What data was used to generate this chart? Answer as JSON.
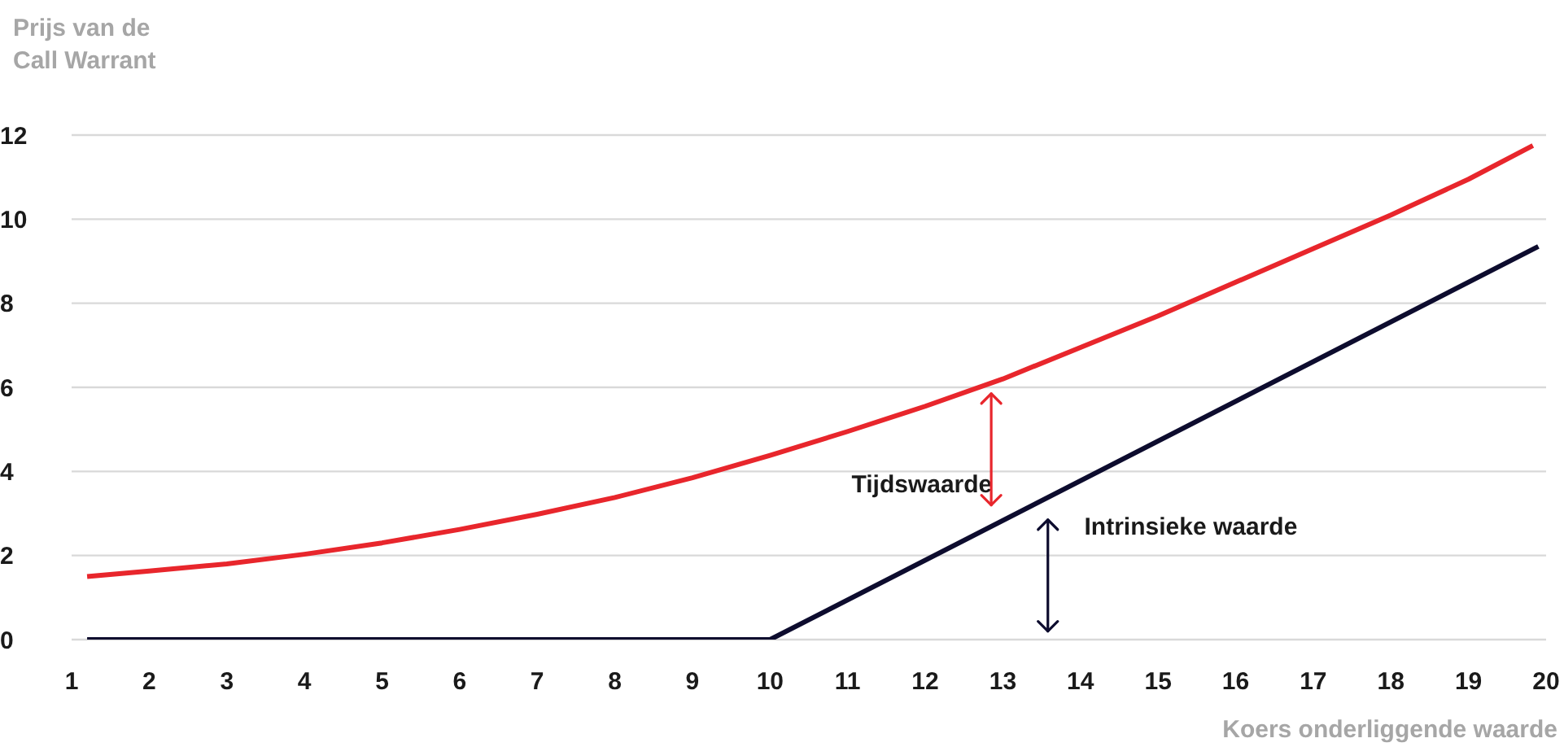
{
  "chart_data": {
    "type": "line",
    "ylabel": "Prijs van de\nCall Warrant",
    "xlabel": "Koers onderliggende waarde",
    "annotations": [
      "Tijdswaarde",
      "Intrinsieke waarde"
    ],
    "series": [
      {
        "color": "#e8262c",
        "x": [
          1.2,
          2,
          3,
          4,
          5,
          6,
          7,
          8,
          9,
          10,
          11,
          12,
          13,
          14,
          15,
          16,
          17,
          18,
          19,
          19.83
        ],
        "values": [
          1.5,
          1.63,
          1.8,
          2.03,
          2.3,
          2.62,
          2.98,
          3.38,
          3.85,
          4.38,
          4.95,
          5.55,
          6.2,
          6.95,
          7.7,
          8.5,
          9.3,
          10.1,
          10.95,
          11.75
        ]
      },
      {
        "color": "#0d0c2e",
        "x": [
          1.2,
          10,
          19.9
        ],
        "values": [
          0,
          0,
          9.35
        ]
      }
    ],
    "xlim": [
      1,
      20
    ],
    "xticks": [
      1,
      2,
      3,
      4,
      5,
      6,
      7,
      8,
      9,
      10,
      11,
      12,
      13,
      14,
      15,
      16,
      17,
      18,
      19,
      20
    ],
    "ylim": [
      0,
      12
    ],
    "yticks": [
      0,
      2,
      4,
      6,
      8,
      10,
      12
    ],
    "grid": "y",
    "legend": false,
    "marker": "none",
    "line_style": "solid"
  }
}
